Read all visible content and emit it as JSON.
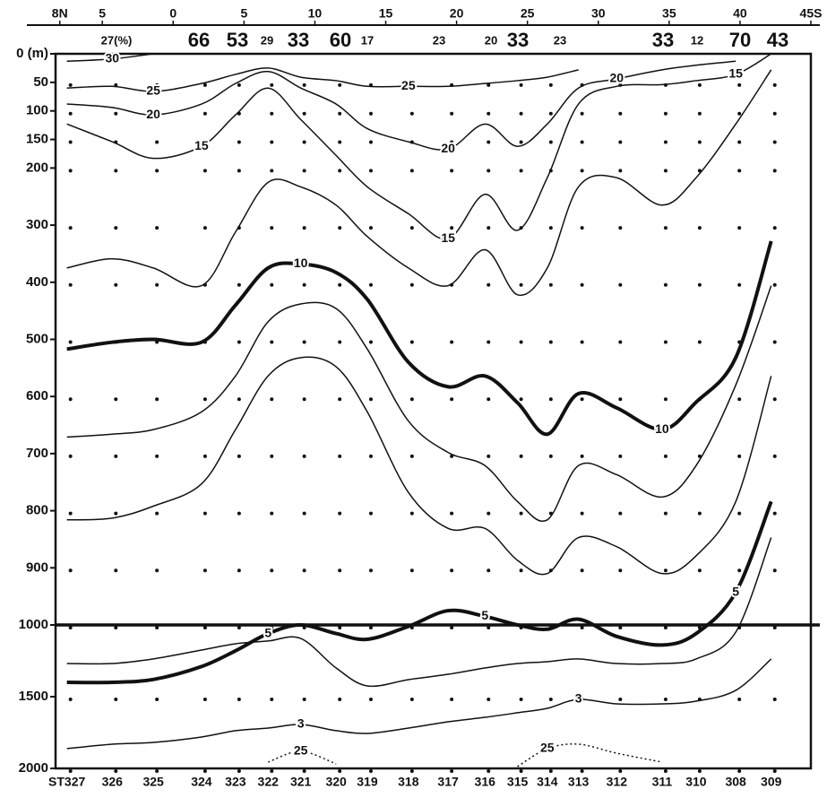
{
  "chart_data": {
    "type": "section",
    "color": "#111111",
    "background": "#ffffff",
    "xlim": [
      -8.3,
      45
    ],
    "xticks": [
      {
        "value": -8,
        "label": "8N"
      },
      {
        "value": -5,
        "label": "5"
      },
      0,
      5,
      10,
      15,
      20,
      25,
      30,
      35,
      40,
      {
        "value": 45,
        "label": "45S"
      }
    ],
    "ylim": [
      0,
      2000
    ],
    "ybreak": 1000,
    "yticks": [
      {
        "value": 0,
        "label": "0 (m)"
      },
      50,
      100,
      150,
      200,
      300,
      400,
      500,
      600,
      700,
      800,
      900,
      1000,
      1500,
      2000
    ],
    "stations": [
      "ST327",
      "326",
      "325",
      "324",
      "323",
      "322",
      "321",
      "320",
      "319",
      "318",
      "317",
      "316",
      "315",
      "314",
      "313",
      "312",
      "311",
      "310",
      "308",
      "309"
    ],
    "x": [
      -7.5,
      -4.3,
      -1.4,
      2.0,
      4.4,
      6.7,
      9.0,
      11.5,
      13.7,
      16.6,
      19.4,
      22.0,
      24.3,
      26.4,
      28.6,
      31.3,
      34.5,
      36.9,
      39.7,
      42.2
    ],
    "top_numbers": {
      "values": [
        27,
        66,
        53,
        29,
        33,
        60,
        17,
        23,
        20,
        33,
        23,
        33,
        12,
        70,
        43
      ],
      "value_labels": [
        "27(%)",
        "66",
        "53",
        "29",
        "33",
        "60",
        "17",
        "23",
        "20",
        "33",
        "23",
        "33",
        "12",
        "70",
        "43"
      ]
    },
    "series": [
      {
        "name": "30",
        "values": [
          13,
          9,
          0,
          null,
          null,
          null,
          null,
          null,
          null,
          null,
          null,
          null,
          null,
          null,
          null,
          null,
          null,
          null,
          null,
          null
        ]
      },
      {
        "name": "25",
        "values": [
          60,
          57,
          66,
          52,
          36,
          25,
          41,
          47,
          57,
          57,
          57,
          52,
          47,
          41,
          28,
          null,
          null,
          null,
          null,
          null
        ]
      },
      {
        "name": "20",
        "values": [
          88,
          94,
          107,
          88,
          52,
          31,
          60,
          88,
          131,
          154,
          167,
          123,
          162,
          123,
          60,
          44,
          28,
          20,
          13,
          null
        ]
      },
      {
        "name": "15",
        "values": [
          123,
          154,
          183,
          162,
          107,
          60,
          115,
          178,
          233,
          280,
          324,
          246,
          309,
          217,
          88,
          57,
          54,
          47,
          36,
          0
        ]
      },
      {
        "values": [
          375,
          359,
          375,
          406,
          312,
          225,
          233,
          265,
          320,
          375,
          406,
          343,
          422,
          375,
          233,
          217,
          265,
          217,
          123,
          28
        ]
      },
      {
        "name": "10",
        "bold": true,
        "values": [
          517,
          505,
          500,
          505,
          440,
          375,
          368,
          383,
          430,
          540,
          583,
          564,
          611,
          666,
          595,
          620,
          658,
          610,
          532,
          328
        ]
      },
      {
        "values": [
          671,
          666,
          658,
          627,
          564,
          469,
          438,
          446,
          517,
          643,
          698,
          721,
          784,
          816,
          721,
          737,
          776,
          721,
          580,
          406
        ]
      },
      {
        "values": [
          816,
          813,
          792,
          753,
          658,
          564,
          532,
          548,
          627,
          768,
          831,
          831,
          887,
          910,
          847,
          863,
          910,
          879,
          784,
          564
        ]
      },
      {
        "name": "5",
        "bold": true,
        "values": [
          1400,
          1400,
          1380,
          1290,
          1180,
          1060,
          1000,
          1060,
          1100,
          1010,
          975,
          985,
          1000,
          1030,
          990,
          1080,
          1140,
          1060,
          943,
          784
        ]
      },
      {
        "values": [
          1269,
          1269,
          1237,
          1175,
          1131,
          1112,
          1094,
          1300,
          1425,
          1381,
          1344,
          1300,
          1269,
          1256,
          1237,
          1269,
          1269,
          1237,
          1050,
          847
        ]
      },
      {
        "name": "3",
        "values": [
          1862,
          1831,
          1819,
          1781,
          1737,
          1719,
          1694,
          1737,
          1756,
          1719,
          1675,
          1644,
          1612,
          1581,
          1519,
          1550,
          1550,
          1531,
          1456,
          1237
        ]
      },
      {
        "name": "25",
        "dashed": true,
        "values": [
          null,
          null,
          null,
          null,
          null,
          null,
          null,
          null,
          null,
          null,
          null,
          null,
          1987,
          1862,
          1831,
          1894,
          1956,
          null,
          null,
          null
        ]
      },
      {
        "name": "25",
        "dashed": true,
        "values": [
          null,
          null,
          null,
          null,
          null,
          1956,
          1881,
          1969,
          null,
          null,
          null,
          null,
          null,
          null,
          null,
          null,
          null,
          null,
          null,
          null
        ]
      }
    ]
  }
}
